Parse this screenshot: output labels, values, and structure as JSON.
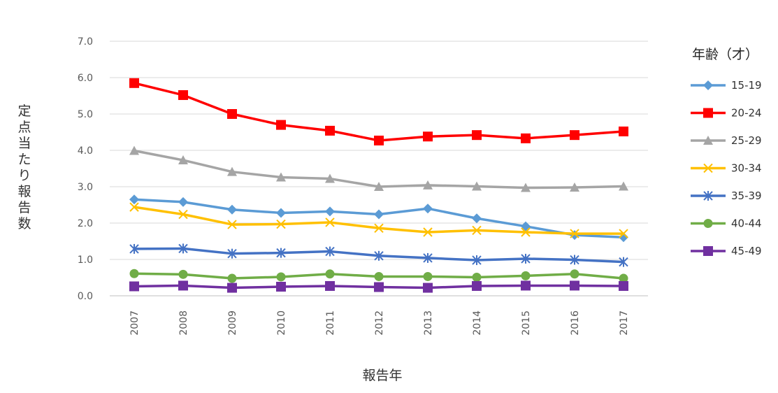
{
  "chart_data": {
    "type": "line",
    "title": "",
    "xlabel": "報告年",
    "ylabel": "定点当たり報告数",
    "ylim": [
      0,
      7
    ],
    "yticks": [
      "0.0",
      "1.0",
      "2.0",
      "3.0",
      "4.0",
      "5.0",
      "6.0",
      "7.0"
    ],
    "x": [
      "2007",
      "2008",
      "2009",
      "2010",
      "2011",
      "2012",
      "2013",
      "2014",
      "2015",
      "2016",
      "2017"
    ],
    "grid": true,
    "legend": {
      "title": "年齢（才）",
      "position": "right"
    },
    "series": [
      {
        "name": "15-19",
        "color": "#5b9bd5",
        "marker": "diamond",
        "values": [
          2.65,
          2.58,
          2.37,
          2.28,
          2.32,
          2.24,
          2.4,
          2.13,
          1.91,
          1.67,
          1.61
        ]
      },
      {
        "name": "20-24",
        "color": "#ff0000",
        "marker": "square",
        "values": [
          5.85,
          5.52,
          5.0,
          4.7,
          4.54,
          4.27,
          4.38,
          4.42,
          4.33,
          4.42,
          4.52
        ]
      },
      {
        "name": "25-29",
        "color": "#a5a5a5",
        "marker": "triangle",
        "values": [
          3.99,
          3.73,
          3.41,
          3.26,
          3.22,
          3.0,
          3.04,
          3.01,
          2.97,
          2.98,
          3.01
        ]
      },
      {
        "name": "30-34",
        "color": "#ffc000",
        "marker": "x",
        "values": [
          2.44,
          2.24,
          1.96,
          1.97,
          2.02,
          1.86,
          1.75,
          1.8,
          1.75,
          1.71,
          1.71
        ]
      },
      {
        "name": "35-39",
        "color": "#4472c4",
        "marker": "star",
        "values": [
          1.29,
          1.3,
          1.16,
          1.18,
          1.22,
          1.1,
          1.04,
          0.98,
          1.02,
          0.99,
          0.93
        ]
      },
      {
        "name": "40-44",
        "color": "#70ad47",
        "marker": "circle",
        "values": [
          0.61,
          0.59,
          0.48,
          0.52,
          0.6,
          0.53,
          0.53,
          0.51,
          0.55,
          0.6,
          0.48
        ]
      },
      {
        "name": "45-49",
        "color": "#7030a0",
        "marker": "square",
        "values": [
          0.26,
          0.28,
          0.22,
          0.25,
          0.27,
          0.24,
          0.22,
          0.27,
          0.28,
          0.28,
          0.27
        ]
      }
    ]
  }
}
